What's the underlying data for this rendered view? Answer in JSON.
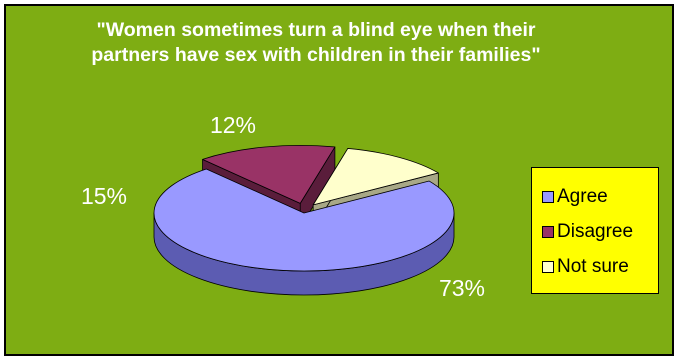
{
  "chart_data": {
    "type": "pie",
    "title": "\"Women sometimes turn a blind eye when their partners have sex with children in their families\"",
    "slices": [
      {
        "name": "Agree",
        "value": 73,
        "label": "73%",
        "color": "#9999ff",
        "side_color": "#5c5cb2"
      },
      {
        "name": "Disagree",
        "value": 15,
        "label": "15%",
        "color": "#993366",
        "side_color": "#5a1d3b"
      },
      {
        "name": "Not sure",
        "value": 12,
        "label": "12%",
        "color": "#ffffcc",
        "side_color": "#a8a886"
      }
    ],
    "legend_position": "right",
    "exploded": true,
    "three_d": true
  },
  "colors": {
    "background": "#7ead13",
    "legend_background": "#ffff00",
    "text": "#ffffff"
  }
}
